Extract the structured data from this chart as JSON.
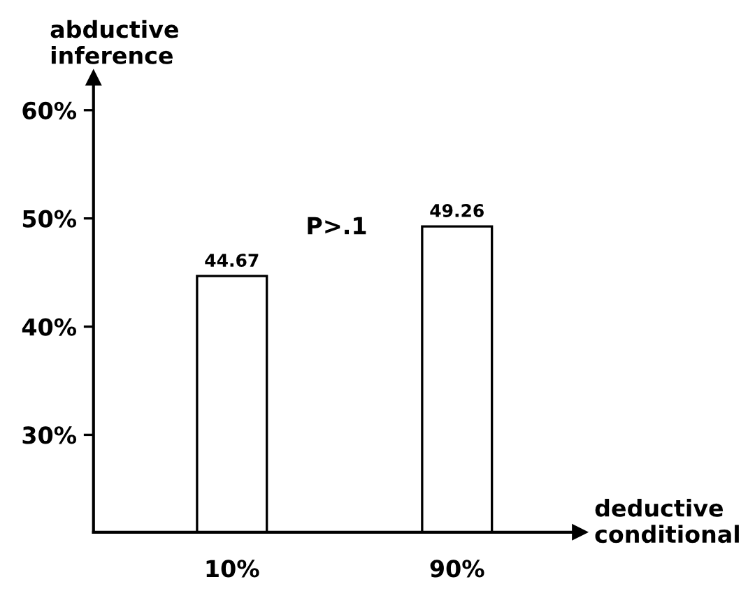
{
  "chart_data": {
    "type": "bar",
    "xlabel": "deductive conditional",
    "ylabel": "abductive inference",
    "categories": [
      "10%",
      "90%"
    ],
    "values": [
      44.67,
      49.26
    ],
    "color": "#ffffff",
    "ylim": [
      21,
      63
    ],
    "yticks": [
      {
        "value": 30,
        "label": "30%"
      },
      {
        "value": 40,
        "label": "40%"
      },
      {
        "value": 50,
        "label": "50%"
      },
      {
        "value": 60,
        "label": "60%"
      }
    ],
    "data_labels": true,
    "grid": false,
    "annotations": [
      "P>.1"
    ]
  }
}
